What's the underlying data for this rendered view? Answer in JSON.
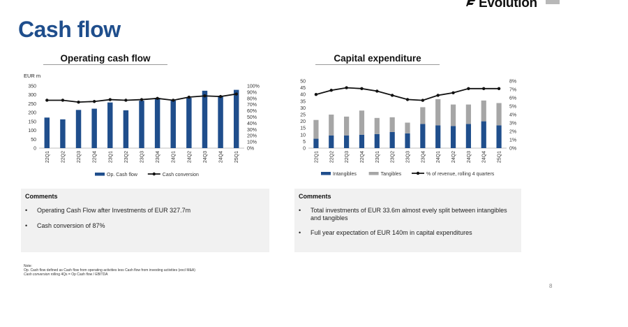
{
  "brand": {
    "name": "Evolution",
    "color": "#1f4e8c"
  },
  "page_title": "Cash flow",
  "page_number": "8",
  "operating": {
    "title": "Operating cash flow",
    "comments_title": "Comments",
    "bullets": [
      "Operating Cash Flow after Investments of EUR 327.7m",
      "Cash conversion of 87%"
    ]
  },
  "capex": {
    "title": "Capital expenditure",
    "comments_title": "Comments",
    "bullets": [
      "Total investments of EUR 33.6m almost evely split between intangibles and tangibles",
      "Full year expectation of EUR 140m in capital expenditures"
    ]
  },
  "note": {
    "label": "Note:",
    "line1": "Op. Cash flow defined as Cash flow from operating activities less Cash flow from investing activities (excl M&A)",
    "line2_italic": "Cash conversion",
    "line2_rest": " rolling 4Qs = Op Cash flow / EBITDA"
  },
  "chart_data": [
    {
      "type": "bar",
      "title": "Operating cash flow",
      "ylabel": "EUR m",
      "categories": [
        "22Q1",
        "22Q2",
        "22Q3",
        "22Q4",
        "23Q1",
        "23Q2",
        "23Q3",
        "23Q4",
        "24Q1",
        "24Q2",
        "24Q3",
        "24Q4",
        "25Q1"
      ],
      "ylim": [
        0,
        350
      ],
      "yticks": [
        0,
        50,
        100,
        150,
        200,
        250,
        300,
        350
      ],
      "y2lim": [
        0,
        100
      ],
      "y2ticks": [
        "0%",
        "10%",
        "20%",
        "30%",
        "40%",
        "50%",
        "60%",
        "70%",
        "80%",
        "90%",
        "100%"
      ],
      "series": [
        {
          "name": "Op. Cash flow",
          "kind": "bar",
          "axis": "left",
          "color": "#1f4e8c",
          "values": [
            172,
            162,
            215,
            222,
            257,
            213,
            267,
            283,
            268,
            283,
            323,
            295,
            328
          ]
        },
        {
          "name": "Cash conversion",
          "kind": "line",
          "axis": "right",
          "color": "#111111",
          "values": [
            77,
            77,
            74,
            75,
            78,
            77,
            78,
            80,
            77,
            82,
            84,
            83,
            87
          ]
        }
      ],
      "legend_position": "bottom"
    },
    {
      "type": "bar",
      "stacked": true,
      "title": "Capital expenditure",
      "categories": [
        "22Q1",
        "22Q2",
        "22Q3",
        "22Q4",
        "23Q1",
        "23Q2",
        "23Q3",
        "23Q4",
        "24Q1",
        "24Q2",
        "24Q3",
        "24Q4",
        "25Q1"
      ],
      "ylim": [
        0,
        50
      ],
      "yticks": [
        0,
        5,
        10,
        15,
        20,
        25,
        30,
        35,
        40,
        45,
        50
      ],
      "y2lim": [
        0,
        8
      ],
      "y2ticks": [
        "0%",
        "1%",
        "2%",
        "3%",
        "4%",
        "5%",
        "6%",
        "7%",
        "8%"
      ],
      "series": [
        {
          "name": "Intangibles",
          "kind": "bar",
          "axis": "left",
          "color": "#1f4e8c",
          "values": [
            7,
            9.5,
            9.5,
            10,
            10.5,
            12,
            11,
            18,
            17,
            16.5,
            18,
            20,
            17
          ]
        },
        {
          "name": "Tangibles",
          "kind": "bar",
          "axis": "left",
          "color": "#a6a6a6",
          "values": [
            14,
            15.5,
            14,
            18,
            12,
            11,
            8,
            12.5,
            19.5,
            16,
            14.5,
            15.5,
            16.6
          ]
        },
        {
          "name": "% of revenue, rolling 4 quarters",
          "kind": "line",
          "axis": "right",
          "color": "#111111",
          "values": [
            6.4,
            6.9,
            7.2,
            7.1,
            6.8,
            6.3,
            5.8,
            5.7,
            6.3,
            6.6,
            7.1,
            7.1,
            7.1
          ]
        }
      ],
      "legend_position": "bottom"
    }
  ]
}
